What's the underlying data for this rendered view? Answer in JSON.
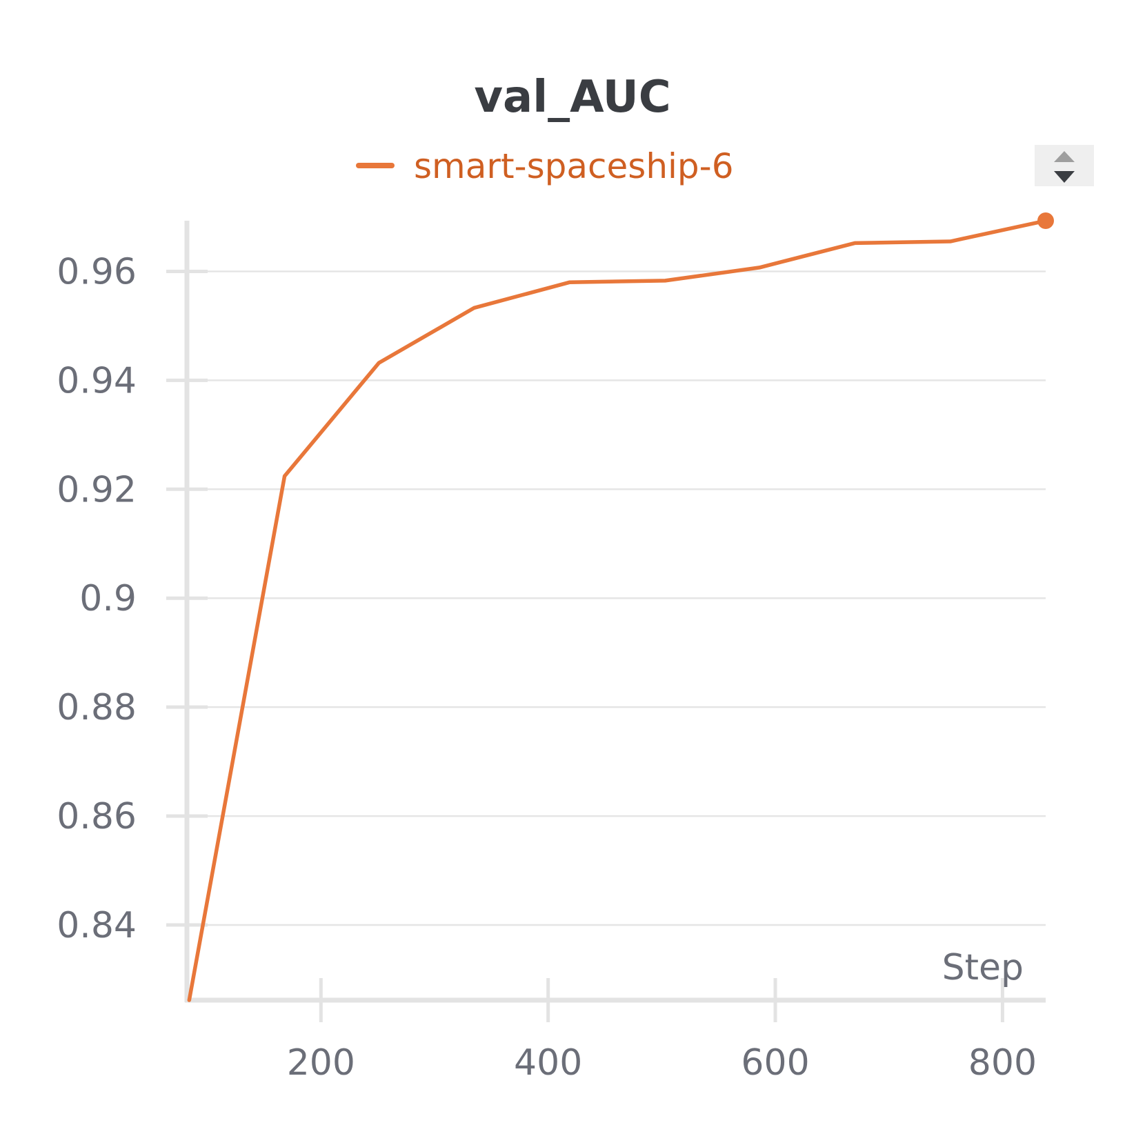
{
  "chart_data": {
    "type": "line",
    "title": "val_AUC",
    "xlabel": "Step",
    "ylabel": "",
    "xlim": [
      82,
      838
    ],
    "ylim": [
      0.8262,
      0.9693
    ],
    "x_ticks": [
      200,
      400,
      600,
      800
    ],
    "y_ticks": [
      0.84,
      0.86,
      0.88,
      0.9,
      0.92,
      0.94,
      0.96
    ],
    "y_tick_labels": [
      "0.84",
      "0.86",
      "0.88",
      "0.9",
      "0.92",
      "0.94",
      "0.96"
    ],
    "grid": true,
    "legend_position": "top-center",
    "series": [
      {
        "name": "smart-spaceship-6",
        "color": "#e8773a",
        "x": [
          84,
          168,
          251,
          335,
          419,
          503,
          586,
          670,
          754,
          838
        ],
        "values": [
          0.8262,
          0.9224,
          0.9432,
          0.9533,
          0.958,
          0.9583,
          0.9607,
          0.9652,
          0.9655,
          0.9693
        ],
        "end_marker": true
      }
    ]
  },
  "controls": {
    "sort_icon": "sort-arrows-icon"
  }
}
